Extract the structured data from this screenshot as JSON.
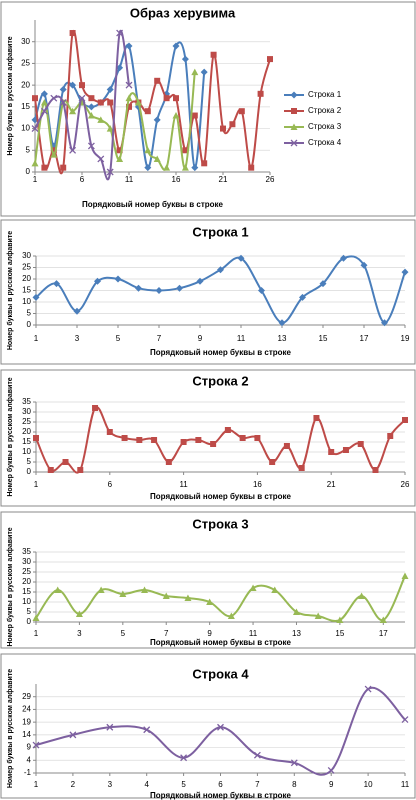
{
  "chart_data": [
    {
      "type": "line",
      "title": "Образ херувима",
      "x_label": "Порядковый номер буквы в строке",
      "y_label": "Номер буквы в русском алфавите",
      "x": [
        1,
        2,
        3,
        4,
        5,
        6,
        7,
        8,
        9,
        10,
        11,
        12,
        13,
        14,
        15,
        16,
        17,
        18,
        19,
        20,
        21,
        22,
        23,
        24,
        25,
        26
      ],
      "xlim": [
        1,
        26
      ],
      "xticks": [
        1,
        6,
        11,
        16,
        21,
        26
      ],
      "ylim": [
        0,
        35
      ],
      "yticks": [
        0,
        5,
        10,
        15,
        20,
        25,
        30
      ],
      "grid": true,
      "legend": "right",
      "series": [
        {
          "name": "Строка 1",
          "color": "#4a7ebb",
          "marker": "diamond",
          "values": [
            12,
            18,
            6,
            19,
            20,
            16,
            15,
            16,
            19,
            24,
            29,
            15,
            1,
            12,
            18,
            29,
            26,
            1,
            23,
            null,
            null,
            null,
            null,
            null,
            null,
            null
          ]
        },
        {
          "name": "Строка 2",
          "color": "#be4b48",
          "marker": "square",
          "values": [
            17,
            1,
            5,
            1,
            32,
            20,
            17,
            16,
            16,
            5,
            15,
            16,
            14,
            21,
            17,
            17,
            5,
            13,
            2,
            27,
            10,
            11,
            14,
            1,
            18,
            26
          ]
        },
        {
          "name": "Строка 3",
          "color": "#98b954",
          "marker": "triangle",
          "values": [
            2,
            16,
            4,
            16,
            14,
            16,
            13,
            12,
            10,
            3,
            17,
            16,
            5,
            3,
            1,
            13,
            1,
            23,
            null,
            null,
            null,
            null,
            null,
            null,
            null,
            null
          ]
        },
        {
          "name": "Строка 4",
          "color": "#7d60a0",
          "marker": "cross",
          "values": [
            10,
            14,
            17,
            16,
            5,
            17,
            6,
            3,
            0,
            32,
            20,
            null,
            null,
            null,
            null,
            null,
            null,
            null,
            null,
            null,
            null,
            null,
            null,
            null,
            null,
            null
          ]
        }
      ]
    },
    {
      "type": "line",
      "title": "Строка 1",
      "x_label": "Порядковый номер буквы в строке",
      "y_label": "Номер буквы в русском алфавите",
      "x": [
        1,
        2,
        3,
        4,
        5,
        6,
        7,
        8,
        9,
        10,
        11,
        12,
        13,
        14,
        15,
        16,
        17,
        18,
        19
      ],
      "xlim": [
        1,
        19
      ],
      "xticks": [
        1,
        3,
        5,
        7,
        9,
        11,
        13,
        15,
        17,
        19
      ],
      "ylim": [
        0,
        30
      ],
      "yticks": [
        0,
        5,
        10,
        15,
        20,
        25,
        30
      ],
      "grid": true,
      "series": [
        {
          "color": "#4a7ebb",
          "marker": "diamond",
          "values": [
            12,
            18,
            6,
            19,
            20,
            16,
            15,
            16,
            19,
            24,
            29,
            15,
            1,
            12,
            18,
            29,
            26,
            1,
            23
          ]
        }
      ]
    },
    {
      "type": "line",
      "title": "Строка 2",
      "x_label": "Порядковый номер буквы в строке",
      "y_label": "Номер буквы в русском алфавите",
      "x": [
        1,
        2,
        3,
        4,
        5,
        6,
        7,
        8,
        9,
        10,
        11,
        12,
        13,
        14,
        15,
        16,
        17,
        18,
        19,
        20,
        21,
        22,
        23,
        24,
        25,
        26
      ],
      "xlim": [
        1,
        26
      ],
      "xticks": [
        1,
        6,
        11,
        16,
        21,
        26
      ],
      "ylim": [
        0,
        35
      ],
      "yticks": [
        0,
        5,
        10,
        15,
        20,
        25,
        30,
        35
      ],
      "grid": true,
      "series": [
        {
          "color": "#be4b48",
          "marker": "square",
          "values": [
            17,
            1,
            5,
            1,
            32,
            20,
            17,
            16,
            16,
            5,
            15,
            16,
            14,
            21,
            17,
            17,
            5,
            13,
            2,
            27,
            10,
            11,
            14,
            1,
            18,
            26
          ]
        }
      ]
    },
    {
      "type": "line",
      "title": "Строка 3",
      "x_label": "Порядковый номер буквы в строке",
      "y_label": "Номер буквы в русском алфавите",
      "x": [
        1,
        2,
        3,
        4,
        5,
        6,
        7,
        8,
        9,
        10,
        11,
        12,
        13,
        14,
        15,
        16,
        17,
        18
      ],
      "xlim": [
        1,
        18
      ],
      "xticks": [
        1,
        3,
        5,
        7,
        9,
        11,
        13,
        15,
        17
      ],
      "ylim": [
        0,
        35
      ],
      "yticks": [
        0,
        5,
        10,
        15,
        20,
        25,
        30,
        35
      ],
      "grid": true,
      "series": [
        {
          "color": "#98b954",
          "marker": "triangle",
          "values": [
            2,
            16,
            4,
            16,
            14,
            16,
            13,
            12,
            10,
            3,
            17,
            16,
            5,
            3,
            1,
            13,
            1,
            23
          ]
        }
      ]
    },
    {
      "type": "line",
      "title": "Строка 4",
      "x_label": "Порядковый номер буквы в строке",
      "y_label": "Номер буквы в русском алфавите",
      "x": [
        1,
        2,
        3,
        4,
        5,
        6,
        7,
        8,
        9,
        10,
        11
      ],
      "xlim": [
        1,
        11
      ],
      "xticks": [
        1,
        2,
        3,
        4,
        5,
        6,
        7,
        8,
        9,
        10,
        11
      ],
      "ylim": [
        -1,
        34
      ],
      "yticks": [
        -1,
        4,
        9,
        14,
        19,
        24,
        29
      ],
      "grid": true,
      "series": [
        {
          "color": "#7d60a0",
          "marker": "cross",
          "values": [
            10,
            14,
            17,
            16,
            5,
            17,
            6,
            3,
            0,
            32,
            20
          ]
        }
      ]
    }
  ]
}
